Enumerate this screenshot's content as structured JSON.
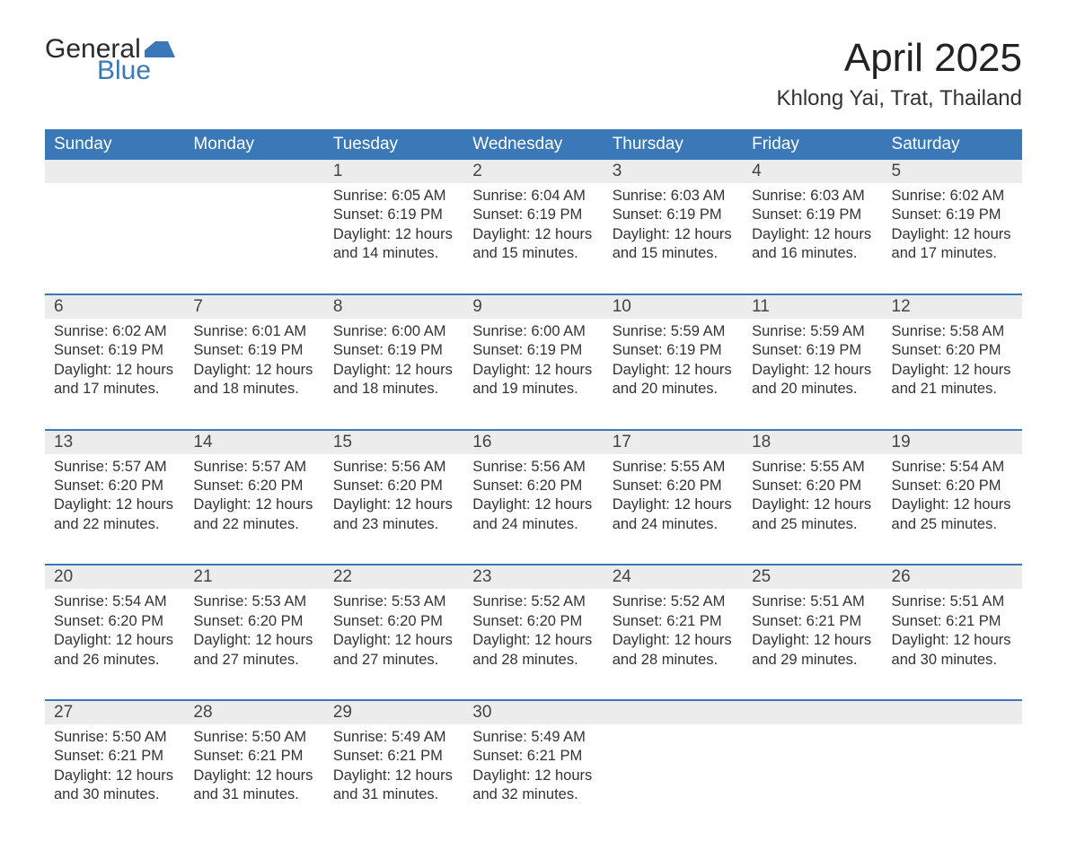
{
  "brand": {
    "word1": "General",
    "word2": "Blue",
    "icon_color": "#3b78b8"
  },
  "title": "April 2025",
  "location": "Khlong Yai, Trat, Thailand",
  "colors": {
    "header_bg": "#3b78b8",
    "header_text": "#ffffff",
    "daynum_bg": "#ececec",
    "row_border": "#3b78b8",
    "body_text": "#333333"
  },
  "fonts": {
    "title_size": 44,
    "location_size": 24,
    "header_size": 19,
    "body_size": 16.5
  },
  "day_headers": [
    "Sunday",
    "Monday",
    "Tuesday",
    "Wednesday",
    "Thursday",
    "Friday",
    "Saturday"
  ],
  "weeks": [
    [
      null,
      null,
      {
        "n": "1",
        "sunrise": "6:05 AM",
        "sunset": "6:19 PM",
        "daylight": "12 hours and 14 minutes."
      },
      {
        "n": "2",
        "sunrise": "6:04 AM",
        "sunset": "6:19 PM",
        "daylight": "12 hours and 15 minutes."
      },
      {
        "n": "3",
        "sunrise": "6:03 AM",
        "sunset": "6:19 PM",
        "daylight": "12 hours and 15 minutes."
      },
      {
        "n": "4",
        "sunrise": "6:03 AM",
        "sunset": "6:19 PM",
        "daylight": "12 hours and 16 minutes."
      },
      {
        "n": "5",
        "sunrise": "6:02 AM",
        "sunset": "6:19 PM",
        "daylight": "12 hours and 17 minutes."
      }
    ],
    [
      {
        "n": "6",
        "sunrise": "6:02 AM",
        "sunset": "6:19 PM",
        "daylight": "12 hours and 17 minutes."
      },
      {
        "n": "7",
        "sunrise": "6:01 AM",
        "sunset": "6:19 PM",
        "daylight": "12 hours and 18 minutes."
      },
      {
        "n": "8",
        "sunrise": "6:00 AM",
        "sunset": "6:19 PM",
        "daylight": "12 hours and 18 minutes."
      },
      {
        "n": "9",
        "sunrise": "6:00 AM",
        "sunset": "6:19 PM",
        "daylight": "12 hours and 19 minutes."
      },
      {
        "n": "10",
        "sunrise": "5:59 AM",
        "sunset": "6:19 PM",
        "daylight": "12 hours and 20 minutes."
      },
      {
        "n": "11",
        "sunrise": "5:59 AM",
        "sunset": "6:19 PM",
        "daylight": "12 hours and 20 minutes."
      },
      {
        "n": "12",
        "sunrise": "5:58 AM",
        "sunset": "6:20 PM",
        "daylight": "12 hours and 21 minutes."
      }
    ],
    [
      {
        "n": "13",
        "sunrise": "5:57 AM",
        "sunset": "6:20 PM",
        "daylight": "12 hours and 22 minutes."
      },
      {
        "n": "14",
        "sunrise": "5:57 AM",
        "sunset": "6:20 PM",
        "daylight": "12 hours and 22 minutes."
      },
      {
        "n": "15",
        "sunrise": "5:56 AM",
        "sunset": "6:20 PM",
        "daylight": "12 hours and 23 minutes."
      },
      {
        "n": "16",
        "sunrise": "5:56 AM",
        "sunset": "6:20 PM",
        "daylight": "12 hours and 24 minutes."
      },
      {
        "n": "17",
        "sunrise": "5:55 AM",
        "sunset": "6:20 PM",
        "daylight": "12 hours and 24 minutes."
      },
      {
        "n": "18",
        "sunrise": "5:55 AM",
        "sunset": "6:20 PM",
        "daylight": "12 hours and 25 minutes."
      },
      {
        "n": "19",
        "sunrise": "5:54 AM",
        "sunset": "6:20 PM",
        "daylight": "12 hours and 25 minutes."
      }
    ],
    [
      {
        "n": "20",
        "sunrise": "5:54 AM",
        "sunset": "6:20 PM",
        "daylight": "12 hours and 26 minutes."
      },
      {
        "n": "21",
        "sunrise": "5:53 AM",
        "sunset": "6:20 PM",
        "daylight": "12 hours and 27 minutes."
      },
      {
        "n": "22",
        "sunrise": "5:53 AM",
        "sunset": "6:20 PM",
        "daylight": "12 hours and 27 minutes."
      },
      {
        "n": "23",
        "sunrise": "5:52 AM",
        "sunset": "6:20 PM",
        "daylight": "12 hours and 28 minutes."
      },
      {
        "n": "24",
        "sunrise": "5:52 AM",
        "sunset": "6:21 PM",
        "daylight": "12 hours and 28 minutes."
      },
      {
        "n": "25",
        "sunrise": "5:51 AM",
        "sunset": "6:21 PM",
        "daylight": "12 hours and 29 minutes."
      },
      {
        "n": "26",
        "sunrise": "5:51 AM",
        "sunset": "6:21 PM",
        "daylight": "12 hours and 30 minutes."
      }
    ],
    [
      {
        "n": "27",
        "sunrise": "5:50 AM",
        "sunset": "6:21 PM",
        "daylight": "12 hours and 30 minutes."
      },
      {
        "n": "28",
        "sunrise": "5:50 AM",
        "sunset": "6:21 PM",
        "daylight": "12 hours and 31 minutes."
      },
      {
        "n": "29",
        "sunrise": "5:49 AM",
        "sunset": "6:21 PM",
        "daylight": "12 hours and 31 minutes."
      },
      {
        "n": "30",
        "sunrise": "5:49 AM",
        "sunset": "6:21 PM",
        "daylight": "12 hours and 32 minutes."
      },
      null,
      null,
      null
    ]
  ],
  "labels": {
    "sunrise": "Sunrise:",
    "sunset": "Sunset:",
    "daylight": "Daylight:"
  }
}
